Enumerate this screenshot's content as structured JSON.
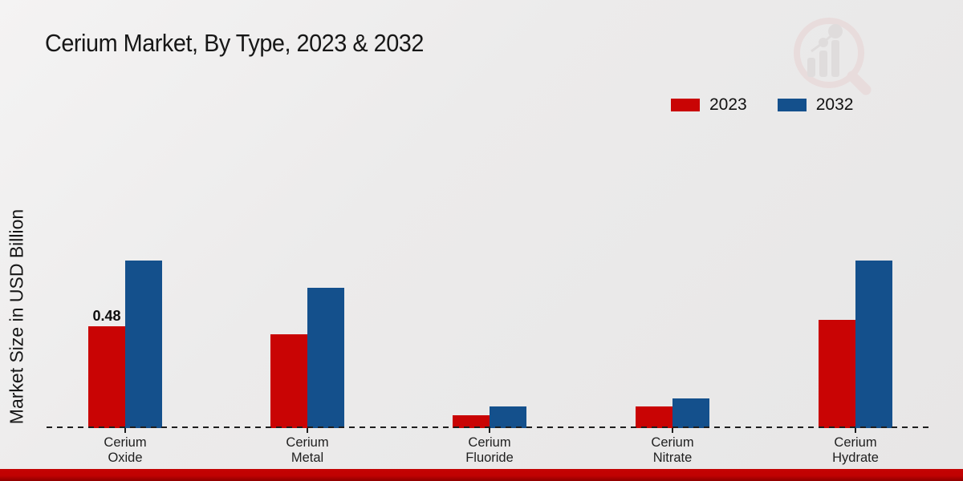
{
  "title": "Cerium Market, By Type, 2023 & 2032",
  "y_axis_label": "Market Size in USD Billion",
  "colors": {
    "series_2023": "#c90404",
    "series_2032": "#14508c",
    "background": "#ecebeb",
    "baseline": "#1e1e1e",
    "bottom_strip": "#c40303"
  },
  "legend": {
    "position": "top-right",
    "items": [
      {
        "label": "2023",
        "color": "#c90404"
      },
      {
        "label": "2032",
        "color": "#14508c"
      }
    ]
  },
  "chart_data": {
    "type": "bar",
    "title": "Cerium Market, By Type, 2023 & 2032",
    "xlabel": "",
    "ylabel": "Market Size in USD Billion",
    "categories": [
      "Cerium Oxide",
      "Cerium Metal",
      "Cerium Fluoride",
      "Cerium Nitrate",
      "Cerium Hydrate"
    ],
    "series": [
      {
        "name": "2023",
        "color": "#c90404",
        "values": [
          0.48,
          0.44,
          0.06,
          0.1,
          0.51
        ]
      },
      {
        "name": "2032",
        "color": "#14508c",
        "values": [
          0.79,
          0.66,
          0.1,
          0.14,
          0.79
        ]
      }
    ],
    "data_labels": [
      {
        "series": "2023",
        "category": "Cerium Oxide",
        "text": "0.48"
      }
    ],
    "ylim": [
      0,
      0.9
    ],
    "grid": false,
    "axis_baseline_style": "dashed",
    "legend_position": "top-right"
  },
  "watermark": {
    "name": "market-research-magnifier-logo"
  }
}
